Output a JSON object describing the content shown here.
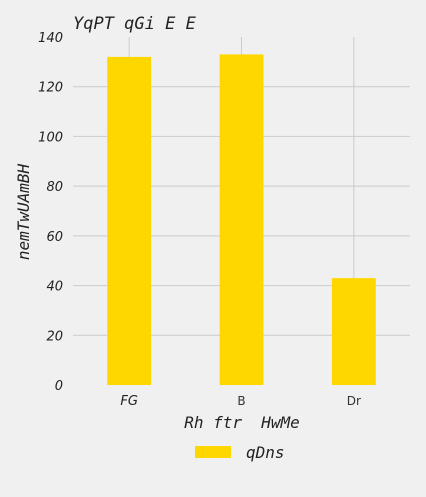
{
  "chart_data": {
    "type": "bar",
    "title": "YqPT qGi E E",
    "xlabel": "Rh ftr  HwMe",
    "ylabel": "nemTwUAmBH",
    "categories": [
      "FG",
      "B",
      "Dr"
    ],
    "series": [
      {
        "name": "qDns",
        "values": [
          132,
          133,
          43
        ],
        "color": "#ffd700"
      }
    ],
    "ylim": [
      0,
      140
    ],
    "yticks": [
      "0",
      "20",
      "40",
      "60",
      "80",
      "100",
      "120",
      "140"
    ],
    "grid": true,
    "legend": "bottom-center",
    "background": "#f0f0f0"
  }
}
